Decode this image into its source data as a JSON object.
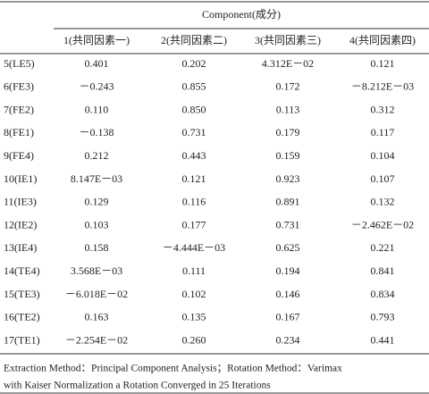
{
  "table": {
    "group_header": "Component(成分)",
    "columns": [
      "1(共同因素一)",
      "2(共同因素二)",
      "3(共同因素三)",
      "4(共同因素四)"
    ],
    "rows": [
      [
        "5(LE5)",
        "0.401",
        "0.202",
        "4.312E－02",
        "0.121"
      ],
      [
        "6(FE3)",
        "－0.243",
        "0.855",
        "0.172",
        "－8.212E－03"
      ],
      [
        "7(FE2)",
        "0.110",
        "0.850",
        "0.113",
        "0.312"
      ],
      [
        "8(FE1)",
        "－0.138",
        "0.731",
        "0.179",
        "0.117"
      ],
      [
        "9(FE4)",
        "0.212",
        "0.443",
        "0.159",
        "0.104"
      ],
      [
        "10(IE1)",
        "8.147E－03",
        "0.121",
        "0.923",
        "0.107"
      ],
      [
        "11(IE3)",
        "0.129",
        "0.116",
        "0.891",
        "0.132"
      ],
      [
        "12(IE2)",
        "0.103",
        "0.177",
        "0.731",
        "－2.462E－02"
      ],
      [
        "13(IE4)",
        "0.158",
        "－4.444E－03",
        "0.625",
        "0.221"
      ],
      [
        "14(TE4)",
        "3.568E－03",
        "0.111",
        "0.194",
        "0.841"
      ],
      [
        "15(TE3)",
        "－6.018E－02",
        "0.102",
        "0.146",
        "0.834"
      ],
      [
        "16(TE2)",
        "0.163",
        "0.135",
        "0.167",
        "0.793"
      ],
      [
        "17(TE1)",
        "－2.254E－02",
        "0.260",
        "0.234",
        "0.441"
      ]
    ],
    "footnote": [
      "Extraction Method：Principal Component Analysis；Rotation Method：Varimax",
      "with Kaiser Normalization a Rotation Converged in 25 Iterations"
    ]
  }
}
